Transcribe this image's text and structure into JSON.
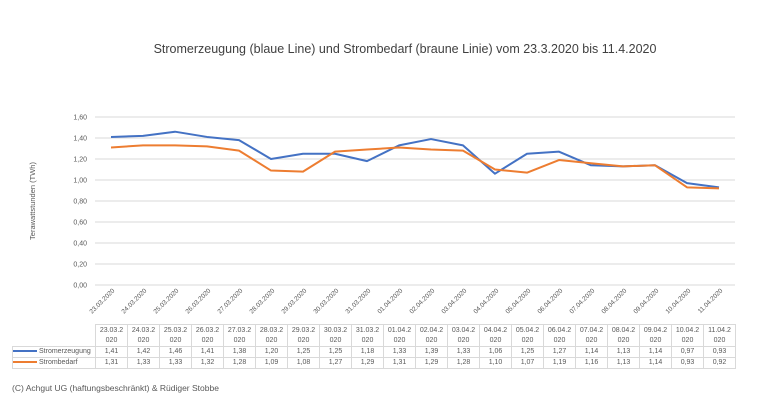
{
  "chart_data": {
    "type": "line",
    "title": "Stromerzeugung (blaue Line) und Strombedarf (braune Linie)  vom 23.3.2020 bis 11.4.2020",
    "xlabel": "",
    "ylabel": "Terawattstunden (TWh)",
    "ylim": [
      0,
      1.6
    ],
    "yticks": [
      "0,00",
      "0,20",
      "0,40",
      "0,60",
      "0,80",
      "1,00",
      "1,20",
      "1,40",
      "1,60"
    ],
    "grid": true,
    "legend": "bottom-table",
    "categories": [
      "23.03.2020",
      "24.03.2020",
      "25.03.2020",
      "26.03.2020",
      "27.03.2020",
      "28.03.2020",
      "29.03.2020",
      "30.03.2020",
      "31.03.2020",
      "01.04.2020",
      "02.04.2020",
      "03.04.2020",
      "04.04.2020",
      "05.04.2020",
      "06.04.2020",
      "07.04.2020",
      "08.04.2020",
      "09.04.2020",
      "10.04.2020",
      "11.04.2020"
    ],
    "table_headers": [
      [
        "23.03.2",
        "020"
      ],
      [
        "24.03.2",
        "020"
      ],
      [
        "25.03.2",
        "020"
      ],
      [
        "26.03.2",
        "020"
      ],
      [
        "27.03.2",
        "020"
      ],
      [
        "28.03.2",
        "020"
      ],
      [
        "29.03.2",
        "020"
      ],
      [
        "30.03.2",
        "020"
      ],
      [
        "31.03.2",
        "020"
      ],
      [
        "01.04.2",
        "020"
      ],
      [
        "02.04.2",
        "020"
      ],
      [
        "03.04.2",
        "020"
      ],
      [
        "04.04.2",
        "020"
      ],
      [
        "05.04.2",
        "020"
      ],
      [
        "06.04.2",
        "020"
      ],
      [
        "07.04.2",
        "020"
      ],
      [
        "08.04.2",
        "020"
      ],
      [
        "09.04.2",
        "020"
      ],
      [
        "10.04.2",
        "020"
      ],
      [
        "11.04.2",
        "020"
      ]
    ],
    "series": [
      {
        "name": "Stromerzeugung",
        "color": "#4472c4",
        "values": [
          1.41,
          1.42,
          1.46,
          1.41,
          1.38,
          1.2,
          1.25,
          1.25,
          1.18,
          1.33,
          1.39,
          1.33,
          1.06,
          1.25,
          1.27,
          1.14,
          1.13,
          1.14,
          0.97,
          0.93
        ],
        "labels": [
          "1,41",
          "1,42",
          "1,46",
          "1,41",
          "1,38",
          "1,20",
          "1,25",
          "1,25",
          "1,18",
          "1,33",
          "1,39",
          "1,33",
          "1,06",
          "1,25",
          "1,27",
          "1,14",
          "1,13",
          "1,14",
          "0,97",
          "0,93"
        ]
      },
      {
        "name": "Strombedarf",
        "color": "#ed7d31",
        "values": [
          1.31,
          1.33,
          1.33,
          1.32,
          1.28,
          1.09,
          1.08,
          1.27,
          1.29,
          1.31,
          1.29,
          1.28,
          1.1,
          1.07,
          1.19,
          1.16,
          1.13,
          1.14,
          0.93,
          0.92
        ],
        "labels": [
          "1,31",
          "1,33",
          "1,33",
          "1,32",
          "1,28",
          "1,09",
          "1,08",
          "1,27",
          "1,29",
          "1,31",
          "1,29",
          "1,28",
          "1,10",
          "1,07",
          "1,19",
          "1,16",
          "1,13",
          "1,14",
          "0,93",
          "0,92"
        ]
      }
    ]
  },
  "credit": "(C) Achgut UG (haftungsbeschränkt) & Rüdiger Stobbe"
}
